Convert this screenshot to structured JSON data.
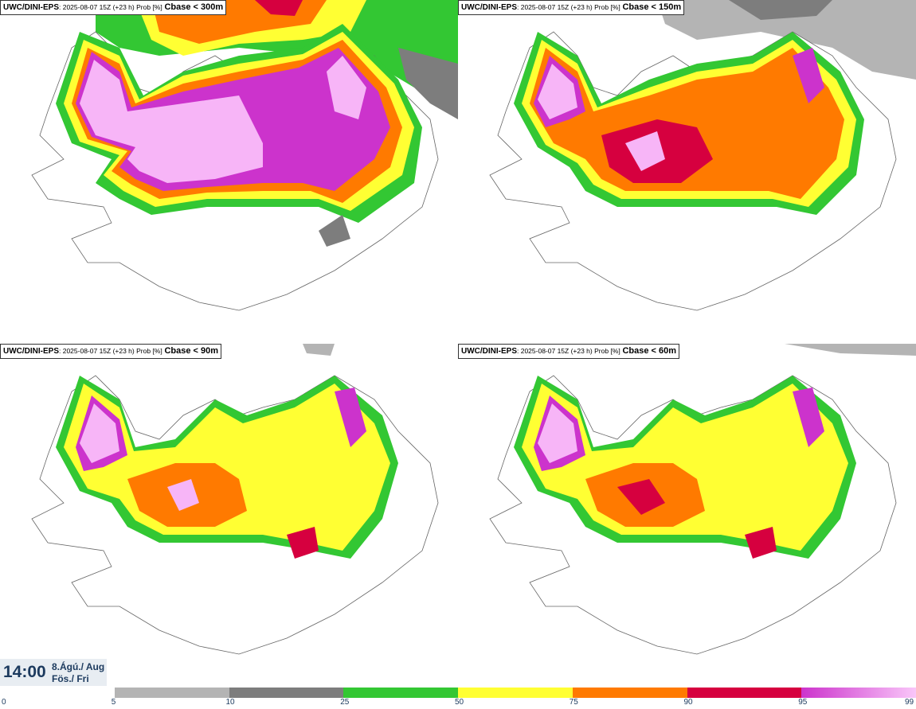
{
  "panels": [
    {
      "model": "UWC/DINI-EPS",
      "meta": ": 2025-08-07 15Z (+23 h) Prob [%]",
      "variable": "Cbase < 300m"
    },
    {
      "model": "UWC/DINI-EPS",
      "meta": ": 2025-08-07 15Z (+23 h) Prob [%]",
      "variable": "Cbase < 150m"
    },
    {
      "model": "UWC/DINI-EPS",
      "meta": ": 2025-08-07 15Z (+23 h) Prob [%]",
      "variable": "Cbase < 90m"
    },
    {
      "model": "UWC/DINI-EPS",
      "meta": ": 2025-08-07 15Z (+23 h) Prob [%]",
      "variable": "Cbase < 60m"
    }
  ],
  "valid_time": {
    "time": "14:00",
    "date_line1": "8.Ágú./ Aug",
    "date_line2": "Fös./ Fri"
  },
  "colorbar": {
    "ticks": [
      "0",
      "5",
      "10",
      "25",
      "50",
      "75",
      "90",
      "95",
      "99"
    ],
    "colors": [
      "#ffffff",
      "#b4b4b4",
      "#7d7d7d",
      "#33c733",
      "#ffff33",
      "#ff7a00",
      "#d6003f",
      "#cc33cc"
    ],
    "last_gradient_to": "#f9c6f9"
  },
  "legend_palette": {
    "prob_5": "#b4b4b4",
    "prob_10": "#7d7d7d",
    "prob_25": "#33c733",
    "prob_50": "#ffff33",
    "prob_75": "#ff7a00",
    "prob_90": "#d6003f",
    "prob_95": "#cc33cc",
    "prob_99": "#f7b5f7"
  }
}
